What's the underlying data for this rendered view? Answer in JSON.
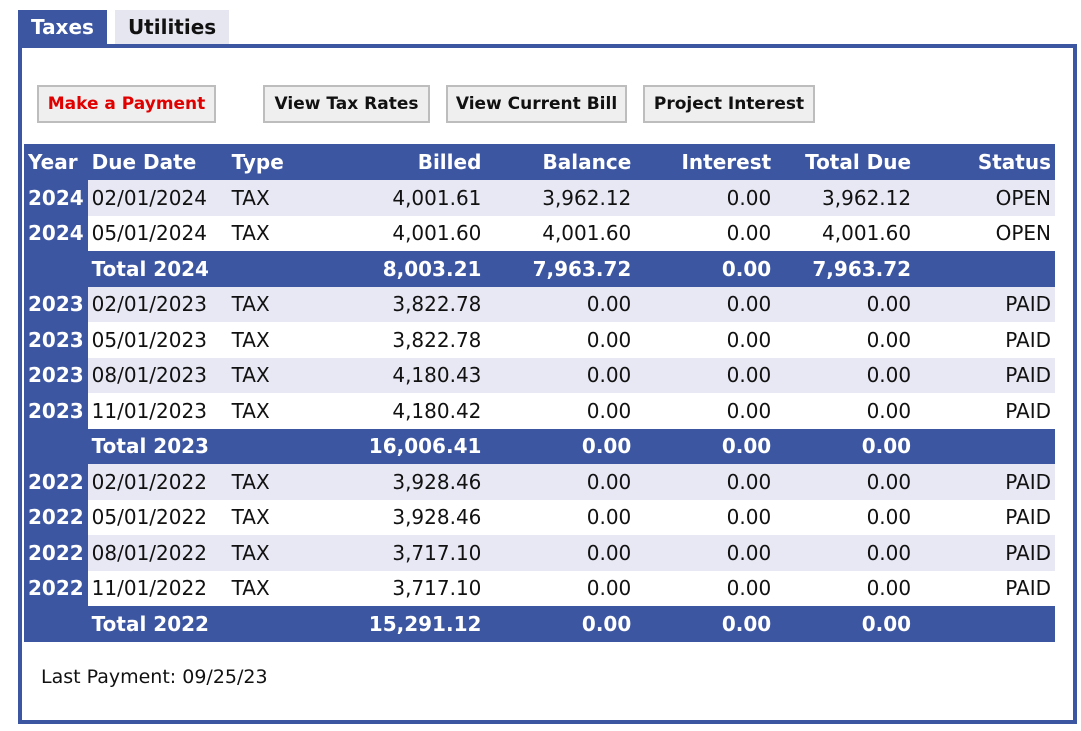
{
  "tabs": [
    {
      "label": "Taxes",
      "active": true
    },
    {
      "label": "Utilities",
      "active": false
    }
  ],
  "buttons": {
    "make_payment": "Make a Payment",
    "view_tax_rates": "View Tax Rates",
    "view_current_bill": "View Current Bill",
    "project_interest": "Project Interest"
  },
  "colors": {
    "header_blue": "#3d56a1",
    "row_stripe": "#e8e8f4",
    "payment_red": "#e00000"
  },
  "table": {
    "columns": [
      "Year",
      "Due Date",
      "Type",
      "Billed",
      "Balance",
      "Interest",
      "Total Due",
      "Status"
    ],
    "rows": [
      {
        "kind": "item",
        "year": "2024",
        "due_date": "02/01/2024",
        "type": "TAX",
        "billed": "4,001.61",
        "balance": "3,962.12",
        "interest": "0.00",
        "total_due": "3,962.12",
        "status": "OPEN"
      },
      {
        "kind": "item",
        "year": "2024",
        "due_date": "05/01/2024",
        "type": "TAX",
        "billed": "4,001.60",
        "balance": "4,001.60",
        "interest": "0.00",
        "total_due": "4,001.60",
        "status": "OPEN"
      },
      {
        "kind": "total",
        "label": "Total 2024",
        "billed": "8,003.21",
        "balance": "7,963.72",
        "interest": "0.00",
        "total_due": "7,963.72"
      },
      {
        "kind": "item",
        "year": "2023",
        "due_date": "02/01/2023",
        "type": "TAX",
        "billed": "3,822.78",
        "balance": "0.00",
        "interest": "0.00",
        "total_due": "0.00",
        "status": "PAID"
      },
      {
        "kind": "item",
        "year": "2023",
        "due_date": "05/01/2023",
        "type": "TAX",
        "billed": "3,822.78",
        "balance": "0.00",
        "interest": "0.00",
        "total_due": "0.00",
        "status": "PAID"
      },
      {
        "kind": "item",
        "year": "2023",
        "due_date": "08/01/2023",
        "type": "TAX",
        "billed": "4,180.43",
        "balance": "0.00",
        "interest": "0.00",
        "total_due": "0.00",
        "status": "PAID"
      },
      {
        "kind": "item",
        "year": "2023",
        "due_date": "11/01/2023",
        "type": "TAX",
        "billed": "4,180.42",
        "balance": "0.00",
        "interest": "0.00",
        "total_due": "0.00",
        "status": "PAID"
      },
      {
        "kind": "total",
        "label": "Total 2023",
        "billed": "16,006.41",
        "balance": "0.00",
        "interest": "0.00",
        "total_due": "0.00"
      },
      {
        "kind": "item",
        "year": "2022",
        "due_date": "02/01/2022",
        "type": "TAX",
        "billed": "3,928.46",
        "balance": "0.00",
        "interest": "0.00",
        "total_due": "0.00",
        "status": "PAID"
      },
      {
        "kind": "item",
        "year": "2022",
        "due_date": "05/01/2022",
        "type": "TAX",
        "billed": "3,928.46",
        "balance": "0.00",
        "interest": "0.00",
        "total_due": "0.00",
        "status": "PAID"
      },
      {
        "kind": "item",
        "year": "2022",
        "due_date": "08/01/2022",
        "type": "TAX",
        "billed": "3,717.10",
        "balance": "0.00",
        "interest": "0.00",
        "total_due": "0.00",
        "status": "PAID"
      },
      {
        "kind": "item",
        "year": "2022",
        "due_date": "11/01/2022",
        "type": "TAX",
        "billed": "3,717.10",
        "balance": "0.00",
        "interest": "0.00",
        "total_due": "0.00",
        "status": "PAID"
      },
      {
        "kind": "total",
        "label": "Total 2022",
        "billed": "15,291.12",
        "balance": "0.00",
        "interest": "0.00",
        "total_due": "0.00"
      }
    ]
  },
  "last_payment": "Last Payment: 09/25/23"
}
